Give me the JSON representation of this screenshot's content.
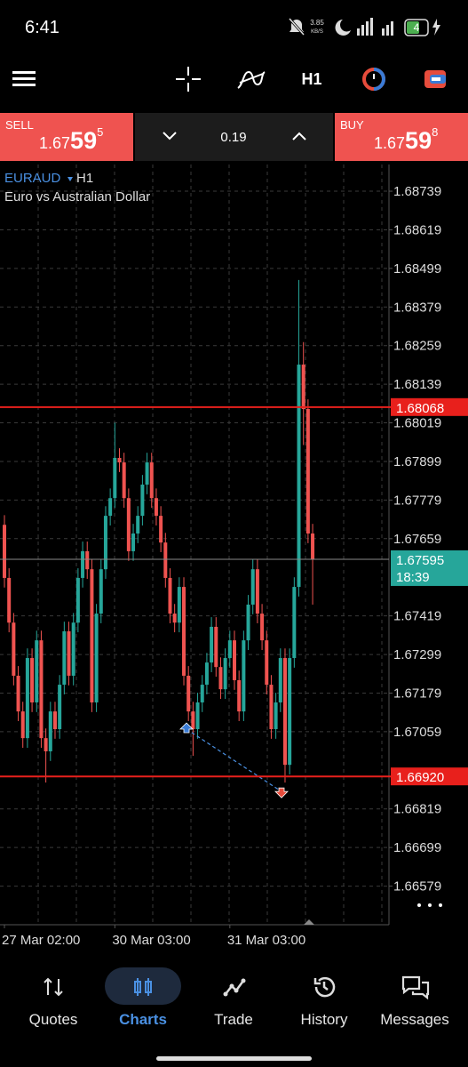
{
  "status_bar": {
    "time": "6:41",
    "speed": "3.85",
    "speed_unit": "KB/S",
    "battery": "4"
  },
  "toolbar": {
    "timeframe": "H1"
  },
  "trade_panel": {
    "sell": {
      "label": "SELL",
      "price_main": "1.67",
      "price_big": "59",
      "price_small": "5"
    },
    "volume": "0.19",
    "buy": {
      "label": "BUY",
      "price_main": "1.67",
      "price_big": "59",
      "price_small": "8"
    }
  },
  "chart_data": {
    "type": "candlestick",
    "symbol": "EURAUD",
    "timeframe": "H1",
    "subtitle": "Euro vs Australian Dollar",
    "up_color": "#26a69a",
    "down_color": "#ef5350",
    "ylim": [
      1.66459,
      1.68822
    ],
    "yticks": [
      1.68739,
      1.68619,
      1.68499,
      1.68379,
      1.68259,
      1.68139,
      1.68019,
      1.67899,
      1.67779,
      1.67659,
      1.67419,
      1.67299,
      1.67179,
      1.67059,
      1.66819,
      1.66699,
      1.66579
    ],
    "grid": true,
    "categories": [
      "27 Mar 02:00",
      null,
      null,
      null,
      null,
      null,
      null,
      null,
      null,
      null,
      null,
      null,
      null,
      null,
      null,
      null,
      null,
      null,
      null,
      null,
      null,
      null,
      null,
      null,
      "30 Mar 03:00",
      null,
      null,
      null,
      null,
      null,
      null,
      null,
      null,
      null,
      null,
      null,
      null,
      null,
      null,
      null,
      null,
      null,
      null,
      null,
      null,
      null,
      null,
      null,
      null,
      "31 Mar 03:00",
      null,
      null,
      null,
      null,
      null,
      null,
      null,
      null,
      null,
      null,
      null,
      null,
      null,
      null,
      null,
      null,
      null,
      null
    ],
    "open": [
      1.67702,
      1.67537,
      1.67398,
      1.67233,
      1.67122,
      1.67039,
      1.67288,
      1.6715,
      1.67343,
      1.67039,
      1.66998,
      1.67122,
      1.67067,
      1.67205,
      1.67371,
      1.67233,
      1.67398,
      1.67537,
      1.6762,
      1.67564,
      1.6715,
      1.67426,
      1.67564,
      1.6773,
      1.67785,
      1.6791,
      1.67896,
      1.67785,
      1.6762,
      1.67675,
      1.6773,
      1.67827,
      1.67896,
      1.67785,
      1.6773,
      1.67647,
      1.67537,
      1.67426,
      1.67398,
      1.67509,
      1.67233,
      1.67122,
      1.67067,
      1.6715,
      1.67205,
      1.67274,
      1.67385,
      1.6726,
      1.67191,
      1.67288,
      1.67343,
      1.67219,
      1.67122,
      1.67343,
      1.67454,
      1.67564,
      1.67426,
      1.67343,
      1.67205,
      1.67067,
      1.6715,
      1.67288,
      1.66956,
      1.67288,
      1.67509,
      1.682,
      1.68062,
      1.67675
    ],
    "high": [
      1.67732,
      1.67567,
      1.67428,
      1.67263,
      1.67152,
      1.67318,
      1.67318,
      1.67373,
      1.67373,
      1.67069,
      1.67152,
      1.67152,
      1.67235,
      1.67401,
      1.67401,
      1.67428,
      1.67567,
      1.6765,
      1.6765,
      1.67594,
      1.67456,
      1.67594,
      1.6776,
      1.67815,
      1.68019,
      1.6794,
      1.67926,
      1.67815,
      1.67705,
      1.6776,
      1.67857,
      1.67926,
      1.67926,
      1.67815,
      1.6776,
      1.67677,
      1.67567,
      1.67456,
      1.67539,
      1.67539,
      1.67263,
      1.67152,
      1.6718,
      1.67235,
      1.67304,
      1.67415,
      1.67415,
      1.6729,
      1.67318,
      1.67373,
      1.67373,
      1.67249,
      1.67373,
      1.67484,
      1.67594,
      1.67594,
      1.67456,
      1.67373,
      1.67235,
      1.6718,
      1.67318,
      1.67318,
      1.67318,
      1.67539,
      1.68463,
      1.6827,
      1.68092,
      1.67705
    ],
    "low": [
      1.67507,
      1.67368,
      1.67203,
      1.67092,
      1.67009,
      1.67009,
      1.6712,
      1.6712,
      1.67009,
      1.66901,
      1.66968,
      1.67037,
      1.67037,
      1.67175,
      1.67203,
      1.67203,
      1.67368,
      1.67507,
      1.67534,
      1.6712,
      1.6712,
      1.67396,
      1.67534,
      1.677,
      1.67755,
      1.67866,
      1.67755,
      1.6759,
      1.6759,
      1.67645,
      1.677,
      1.67797,
      1.67755,
      1.677,
      1.67617,
      1.67507,
      1.67396,
      1.67368,
      1.67368,
      1.67203,
      1.67092,
      1.66984,
      1.67037,
      1.6712,
      1.67175,
      1.67244,
      1.6723,
      1.67161,
      1.67161,
      1.67258,
      1.67189,
      1.67092,
      1.67092,
      1.67313,
      1.67424,
      1.67396,
      1.67313,
      1.67175,
      1.67037,
      1.67037,
      1.6712,
      1.66901,
      1.66926,
      1.67258,
      1.67479,
      1.6795,
      1.67645,
      1.67454
    ],
    "close": [
      1.67537,
      1.67398,
      1.67233,
      1.67122,
      1.67039,
      1.67288,
      1.6715,
      1.67343,
      1.67039,
      1.66998,
      1.67122,
      1.67067,
      1.67205,
      1.67371,
      1.67233,
      1.67398,
      1.67537,
      1.6762,
      1.67564,
      1.6715,
      1.67426,
      1.67564,
      1.6773,
      1.67785,
      1.6791,
      1.67896,
      1.67785,
      1.6762,
      1.67675,
      1.6773,
      1.67827,
      1.67896,
      1.67785,
      1.6773,
      1.67647,
      1.67537,
      1.67426,
      1.67398,
      1.67509,
      1.67233,
      1.67122,
      1.67067,
      1.6715,
      1.67205,
      1.67274,
      1.67385,
      1.6726,
      1.67191,
      1.67288,
      1.67343,
      1.67219,
      1.67122,
      1.67343,
      1.67454,
      1.67564,
      1.67426,
      1.67343,
      1.67205,
      1.67067,
      1.6715,
      1.67288,
      1.66956,
      1.67288,
      1.67509,
      1.682,
      1.68062,
      1.67675,
      1.67595
    ],
    "price_lines": [
      {
        "value": 1.68068,
        "color": "#e8201c"
      },
      {
        "value": 1.6692,
        "label": "1.66920",
        "color": "#e8201c"
      }
    ],
    "current_price": {
      "value": 1.67595,
      "time": "18:39",
      "color": "#26a69a"
    },
    "trade_arrows": {
      "open": 1.67067,
      "close": 1.66873
    }
  },
  "nav": {
    "items": [
      "Quotes",
      "Charts",
      "Trade",
      "History",
      "Messages"
    ],
    "active": 1
  }
}
